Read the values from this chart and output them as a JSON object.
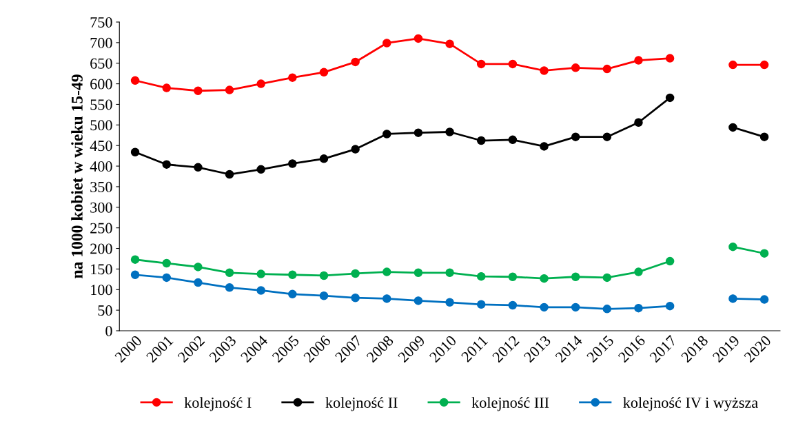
{
  "chart_data": {
    "type": "line",
    "ylabel": "na 1000 kobiet w wieku 15-49",
    "categories": [
      "2000",
      "2001",
      "2002",
      "2003",
      "2004",
      "2005",
      "2006",
      "2007",
      "2008",
      "2009",
      "2010",
      "2011",
      "2012",
      "2013",
      "2014",
      "2015",
      "2016",
      "2017",
      "2018",
      "2019",
      "2020"
    ],
    "series": [
      {
        "name": "kolejność I",
        "color": "#ff0000",
        "values": [
          608,
          590,
          583,
          585,
          600,
          615,
          628,
          653,
          699,
          710,
          697,
          648,
          648,
          632,
          639,
          636,
          657,
          662,
          null,
          646,
          646
        ]
      },
      {
        "name": "kolejność II",
        "color": "#000000",
        "values": [
          434,
          404,
          397,
          380,
          392,
          406,
          418,
          441,
          478,
          481,
          483,
          462,
          464,
          448,
          471,
          471,
          506,
          566,
          null,
          494,
          471
        ]
      },
      {
        "name": "kolejność III",
        "color": "#00b050",
        "values": [
          173,
          164,
          155,
          141,
          138,
          136,
          134,
          139,
          143,
          141,
          141,
          132,
          131,
          127,
          131,
          129,
          143,
          169,
          null,
          204,
          188
        ]
      },
      {
        "name": "kolejność IV i wyższa",
        "color": "#0070c0",
        "values": [
          136,
          129,
          117,
          105,
          98,
          89,
          85,
          80,
          78,
          73,
          69,
          64,
          62,
          57,
          57,
          53,
          55,
          60,
          null,
          78,
          76
        ]
      }
    ],
    "ylim": [
      0,
      750
    ],
    "yticks": [
      0,
      50,
      100,
      150,
      200,
      250,
      300,
      350,
      400,
      450,
      500,
      550,
      600,
      650,
      700,
      750
    ],
    "grid": false,
    "legend": "bottom",
    "marker": "circle",
    "line_style": "solid"
  }
}
